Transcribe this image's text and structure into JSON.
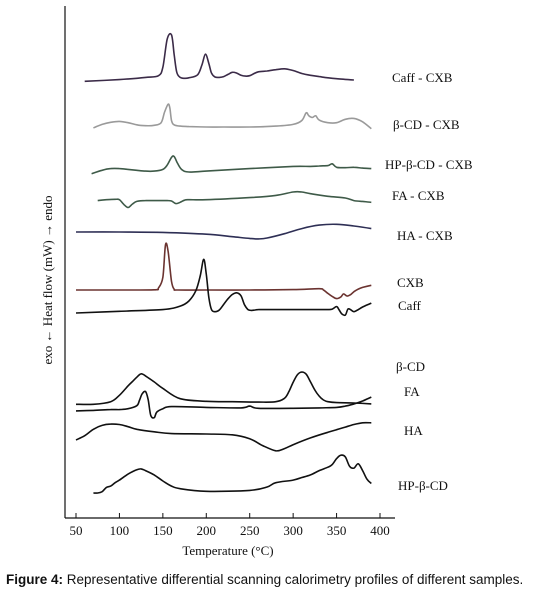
{
  "chart_data": {
    "type": "line",
    "xlabel": "Temperature (°C)",
    "ylabel": "exo ← Heat flow (mW) → endo",
    "xlim": [
      50,
      400
    ],
    "xticks": [
      50,
      100,
      150,
      200,
      250,
      300,
      350,
      400
    ],
    "grid": false,
    "series": [
      {
        "name": "Caff - CXB",
        "color": "#3b2b48",
        "x": [
          60,
          100,
          130,
          145,
          150,
          155,
          160,
          163,
          166,
          170,
          175,
          180,
          190,
          195,
          199,
          203,
          206,
          210,
          215,
          220,
          225,
          230,
          235,
          240,
          245,
          250,
          255,
          260,
          270,
          280,
          290,
          300,
          310,
          320,
          330,
          340,
          350,
          370
        ],
        "y": [
          -0.3,
          0.1,
          0.6,
          1.0,
          3.0,
          9.5,
          10.5,
          6.0,
          1.8,
          0.6,
          0.4,
          0.5,
          1.2,
          3.5,
          6.0,
          3.8,
          1.6,
          0.7,
          0.6,
          0.8,
          1.3,
          1.8,
          1.6,
          1.1,
          0.9,
          1.0,
          1.5,
          1.9,
          2.1,
          2.4,
          2.6,
          2.2,
          1.5,
          1.1,
          0.8,
          0.5,
          0.3,
          0.0
        ]
      },
      {
        "name": "β-CD - CXB",
        "color": "#9a9a9a",
        "x": [
          70,
          80,
          90,
          100,
          110,
          120,
          130,
          140,
          148,
          152,
          156,
          158,
          160,
          163,
          170,
          180,
          200,
          220,
          250,
          280,
          300,
          310,
          315,
          318,
          322,
          326,
          330,
          340,
          350,
          360,
          370,
          380,
          390
        ],
        "y": [
          -0.2,
          0.6,
          1.1,
          1.3,
          1.0,
          0.5,
          0.3,
          0.4,
          1.0,
          3.5,
          5.3,
          4.5,
          1.5,
          0.5,
          0.2,
          0.1,
          0.0,
          0.0,
          0.0,
          0.2,
          0.6,
          1.5,
          3.3,
          2.6,
          2.2,
          2.6,
          1.6,
          1.0,
          1.0,
          1.8,
          2.0,
          1.2,
          -0.4
        ]
      },
      {
        "name": "HP-β-CD - CXB",
        "color": "#3e5a48",
        "x": [
          68,
          80,
          90,
          100,
          110,
          120,
          130,
          140,
          150,
          155,
          160,
          163,
          167,
          172,
          180,
          200,
          250,
          300,
          320,
          330,
          340,
          345,
          350,
          360,
          370,
          380,
          390
        ],
        "y": [
          -0.4,
          0.4,
          0.8,
          0.8,
          0.6,
          0.4,
          0.2,
          0.2,
          0.6,
          1.6,
          3.4,
          3.6,
          2.0,
          0.5,
          0.0,
          0.2,
          0.8,
          1.3,
          1.3,
          1.4,
          1.5,
          1.9,
          1.1,
          1.0,
          1.1,
          0.9,
          0.8
        ]
      },
      {
        "name": "FA - CXB",
        "color": "#3e5a48",
        "x": [
          75,
          85,
          95,
          100,
          105,
          110,
          115,
          120,
          130,
          150,
          155,
          160,
          165,
          170,
          175,
          180,
          200,
          250,
          280,
          300,
          310,
          320,
          340,
          360,
          370,
          380,
          390
        ],
        "y": [
          -0.6,
          -0.4,
          -0.3,
          -0.4,
          -1.5,
          -2.2,
          -1.4,
          -0.8,
          -0.6,
          -0.6,
          -0.6,
          -0.7,
          -1.3,
          -1.0,
          -0.5,
          -0.4,
          -0.4,
          0.1,
          0.6,
          1.4,
          1.4,
          1.0,
          0.4,
          0.0,
          -0.6,
          -0.8,
          -1.0
        ]
      },
      {
        "name": "HA - CXB",
        "color": "#2e2f55",
        "x": [
          50,
          100,
          150,
          200,
          230,
          250,
          260,
          270,
          290,
          310,
          330,
          350,
          370,
          390
        ],
        "y": [
          0.0,
          0.0,
          -0.1,
          -0.5,
          -1.1,
          -1.5,
          -1.6,
          -1.4,
          -0.4,
          0.8,
          1.6,
          1.8,
          1.4,
          0.8
        ]
      },
      {
        "name": "CXB",
        "color": "#6b3330",
        "x": [
          50,
          100,
          140,
          145,
          150,
          153,
          156,
          160,
          163,
          167,
          200,
          250,
          300,
          330,
          335,
          340,
          345,
          350,
          355,
          358,
          362,
          366,
          370,
          375,
          380,
          390
        ],
        "y": [
          0.0,
          0.0,
          0.05,
          0.5,
          3.0,
          10.5,
          9.0,
          2.0,
          0.2,
          0.0,
          0.0,
          0.0,
          0.1,
          0.3,
          0.0,
          -0.8,
          -1.5,
          -2.0,
          -1.6,
          -0.9,
          -1.4,
          -1.1,
          -0.4,
          0.2,
          0.6,
          1.1
        ]
      },
      {
        "name": "Caff",
        "color": "#111111",
        "x": [
          50,
          100,
          150,
          170,
          180,
          188,
          193,
          197,
          200,
          203,
          206,
          210,
          215,
          220,
          225,
          230,
          235,
          240,
          244,
          248,
          252,
          256,
          260,
          270,
          280,
          290,
          300,
          320,
          340,
          345,
          350,
          353,
          356,
          360,
          363,
          366,
          370,
          375,
          380,
          390
        ],
        "y": [
          0.0,
          0.4,
          0.8,
          1.6,
          2.8,
          5.2,
          8.6,
          12.5,
          9.0,
          3.5,
          0.8,
          0.3,
          0.7,
          2.0,
          3.3,
          4.3,
          4.7,
          4.0,
          1.9,
          0.8,
          0.6,
          0.7,
          0.8,
          0.8,
          0.8,
          0.8,
          0.8,
          0.8,
          0.8,
          0.9,
          1.5,
          0.7,
          -0.2,
          -0.5,
          0.9,
          0.8,
          0.3,
          0.8,
          1.4,
          2.3
        ]
      },
      {
        "name": "β-CD",
        "color": "#111111",
        "x": [
          50,
          70,
          90,
          100,
          110,
          115,
          120,
          125,
          130,
          140,
          150,
          170,
          200,
          230,
          260,
          280,
          290,
          295,
          300,
          305,
          310,
          315,
          320,
          325,
          330,
          335,
          340,
          350,
          370,
          390
        ],
        "y": [
          -0.3,
          -0.3,
          0.3,
          1.8,
          4.0,
          5.0,
          6.0,
          6.8,
          6.3,
          4.9,
          3.4,
          1.0,
          0.4,
          0.3,
          0.2,
          0.3,
          1.1,
          2.6,
          4.8,
          6.6,
          7.2,
          6.7,
          4.9,
          3.0,
          1.6,
          0.7,
          0.3,
          0.1,
          0.0,
          -0.2
        ]
      },
      {
        "name": "FA",
        "color": "#111111",
        "x": [
          50,
          70,
          90,
          100,
          110,
          120,
          123,
          126,
          130,
          133,
          136,
          140,
          143,
          150,
          160,
          200,
          240,
          250,
          260,
          300,
          330,
          350,
          360,
          370,
          380,
          390
        ],
        "y": [
          -0.2,
          -0.1,
          0.1,
          0.1,
          0.3,
          1.0,
          2.2,
          3.7,
          4.3,
          2.5,
          -1.2,
          -1.8,
          -0.5,
          0.3,
          0.8,
          0.6,
          0.5,
          0.9,
          0.4,
          0.4,
          0.5,
          0.6,
          0.9,
          1.4,
          2.1,
          3.0
        ]
      },
      {
        "name": "HA",
        "color": "#111111",
        "x": [
          50,
          60,
          70,
          80,
          90,
          100,
          110,
          120,
          140,
          160,
          200,
          230,
          250,
          265,
          280,
          290,
          300,
          320,
          340,
          350,
          360,
          370,
          380,
          390
        ],
        "y": [
          0.0,
          1.0,
          2.5,
          3.4,
          3.7,
          3.6,
          3.1,
          2.5,
          1.9,
          1.5,
          1.4,
          1.2,
          0.3,
          -1.3,
          -2.5,
          -2.0,
          -1.1,
          0.5,
          1.8,
          2.4,
          3.0,
          3.6,
          4.0,
          4.0
        ]
      },
      {
        "name": "HP-β-CD",
        "color": "#111111",
        "x": [
          70,
          75,
          80,
          85,
          90,
          95,
          100,
          110,
          120,
          125,
          130,
          140,
          150,
          160,
          170,
          200,
          250,
          270,
          280,
          300,
          310,
          320,
          330,
          340,
          345,
          350,
          355,
          360,
          365,
          370,
          375,
          380,
          385,
          390
        ],
        "y": [
          0.0,
          0.0,
          0.3,
          1.3,
          1.6,
          2.4,
          3.0,
          4.4,
          5.4,
          5.6,
          5.2,
          4.2,
          2.8,
          1.6,
          1.0,
          0.4,
          0.6,
          1.4,
          2.4,
          3.0,
          3.6,
          4.2,
          5.2,
          6.0,
          6.6,
          8.0,
          8.8,
          8.4,
          6.2,
          5.8,
          6.8,
          5.2,
          3.2,
          2.2
        ]
      }
    ]
  },
  "caption": {
    "label": "Figure 4:",
    "text": " Representative differential scanning calorimetry profiles of different samples."
  }
}
